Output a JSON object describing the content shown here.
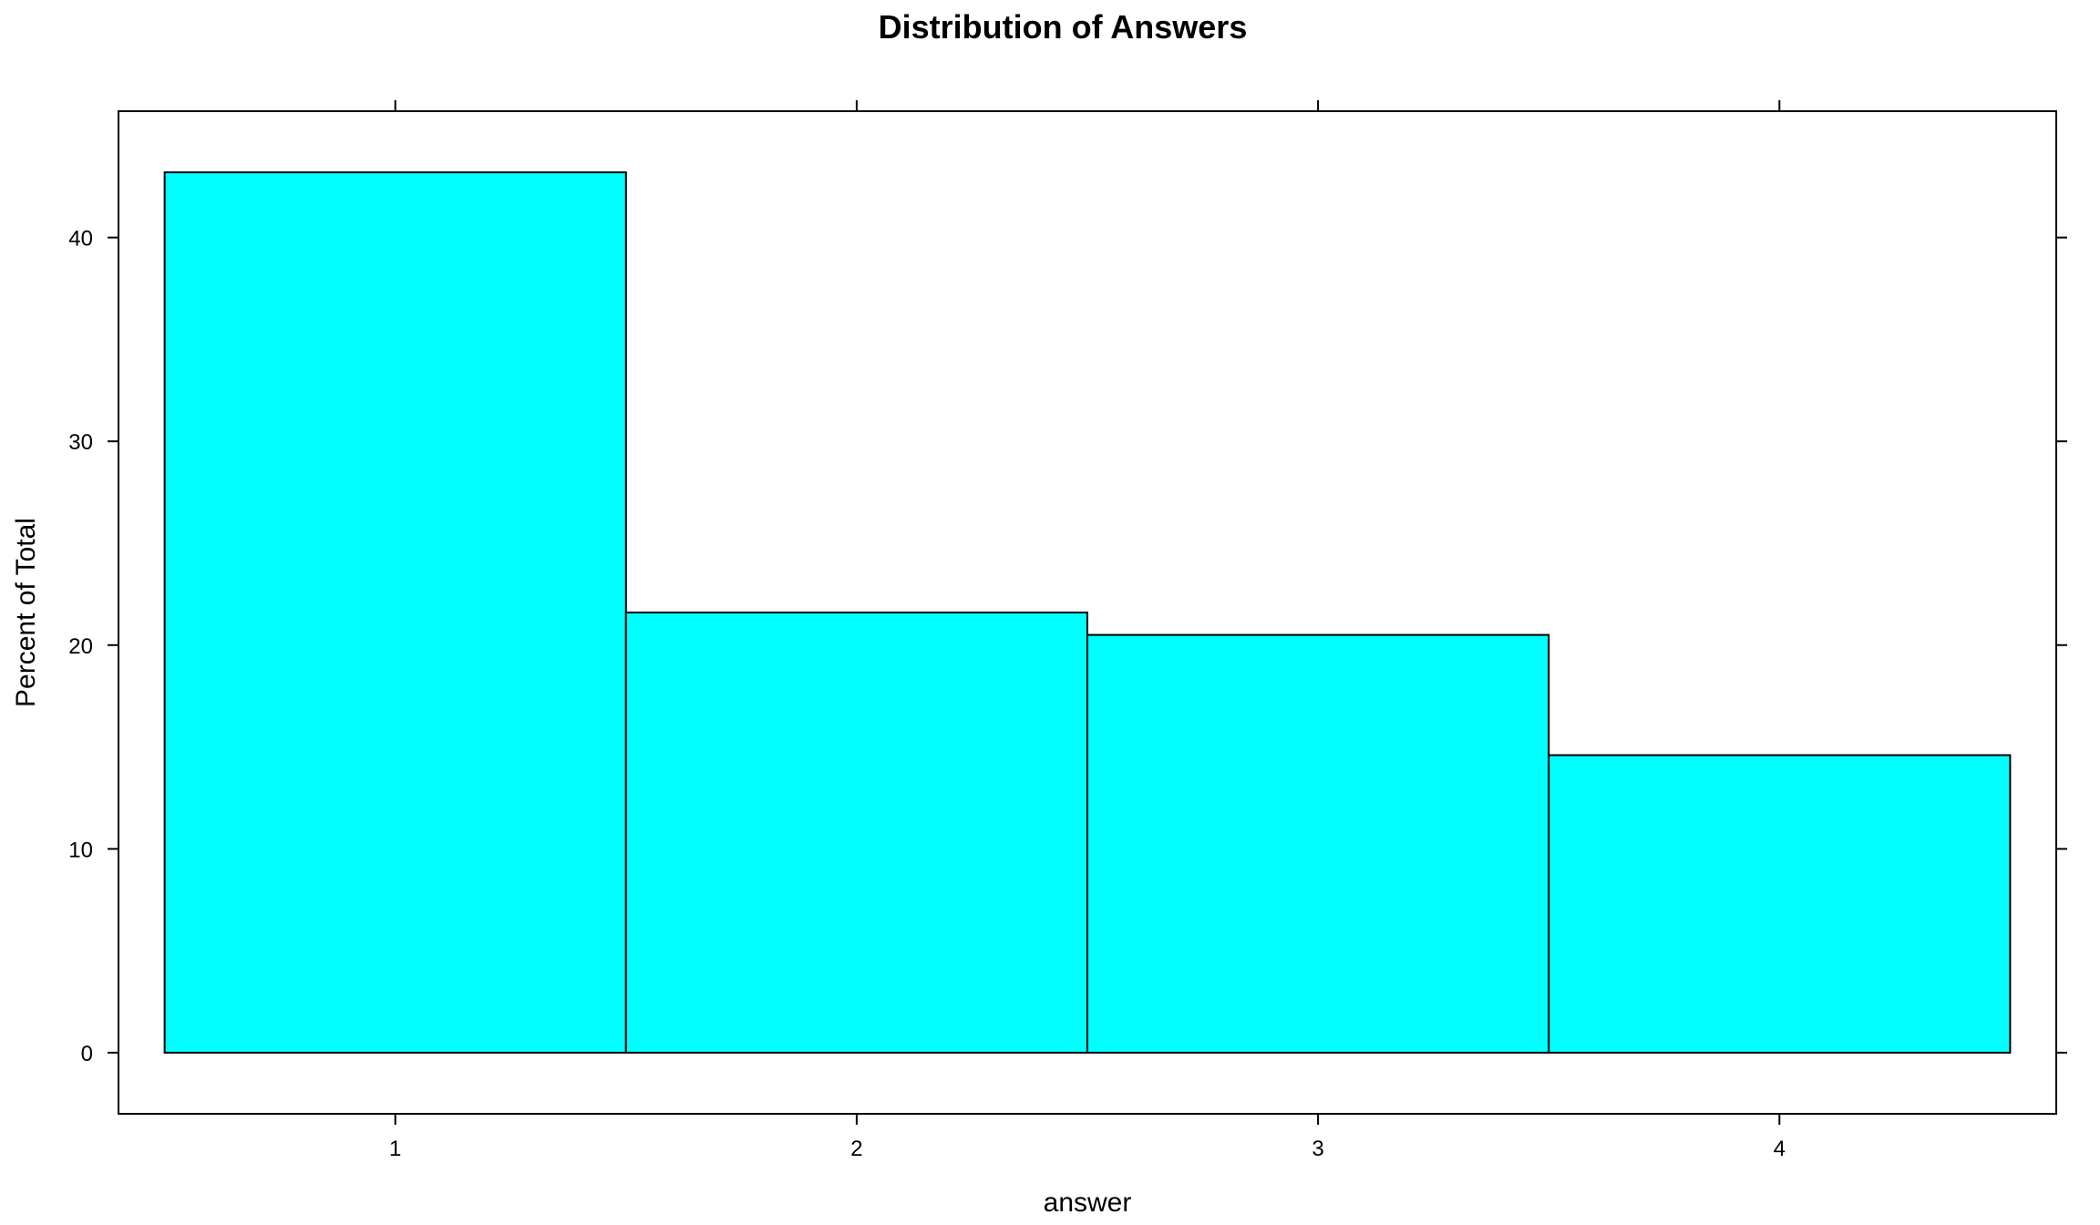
{
  "chart_data": {
    "type": "bar",
    "title": "Distribution of Answers",
    "xlabel": "answer",
    "ylabel": "Percent of Total",
    "categories": [
      "1",
      "2",
      "3",
      "4"
    ],
    "values": [
      43.2,
      21.6,
      20.5,
      14.6
    ],
    "x_ticks": [
      "1",
      "2",
      "3",
      "4"
    ],
    "y_ticks": [
      "0",
      "10",
      "20",
      "30",
      "40"
    ],
    "ylim": [
      -3,
      46.2
    ],
    "xlim": [
      0.4,
      4.6
    ],
    "bar_color": "#00FFFF",
    "bar_edge_color": "#000000",
    "grid": false,
    "legend": "none"
  }
}
